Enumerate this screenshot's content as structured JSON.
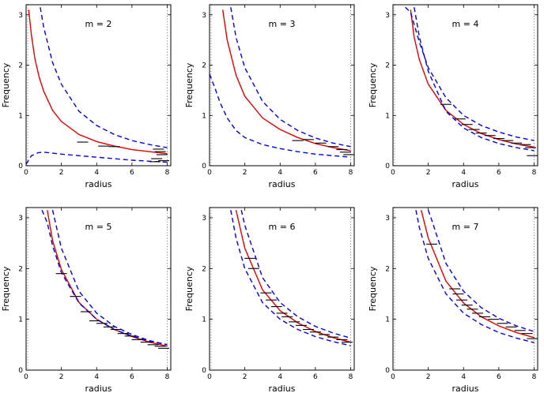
{
  "chart_data": [
    {
      "type": "line",
      "title": "m = 2",
      "xlabel": "radius",
      "ylabel": "Frequency",
      "xlim": [
        0,
        8.2
      ],
      "ylim": [
        0,
        3.2
      ],
      "xticks": [
        "0",
        "2",
        "4",
        "6",
        "8"
      ],
      "yticks": [
        "0",
        "1",
        "2",
        "3"
      ],
      "grid": false,
      "series": [
        {
          "role": "model",
          "color": "#e00000",
          "style": "solid",
          "x": [
            0.15,
            0.3,
            0.5,
            0.75,
            1,
            1.5,
            2,
            3,
            4,
            5,
            6,
            7,
            8
          ],
          "y": [
            3.1,
            2.6,
            2.12,
            1.75,
            1.48,
            1.1,
            0.88,
            0.62,
            0.48,
            0.39,
            0.32,
            0.28,
            0.24
          ]
        },
        {
          "role": "upper bound",
          "color": "#0000dd",
          "style": "dashed",
          "x": [
            0.8,
            1,
            1.5,
            2,
            3,
            4,
            5,
            6,
            7,
            8
          ],
          "y": [
            3.15,
            2.75,
            2.05,
            1.62,
            1.08,
            0.8,
            0.62,
            0.5,
            0.42,
            0.36
          ]
        },
        {
          "role": "lower bound",
          "color": "#0000dd",
          "style": "dashed",
          "x": [
            0,
            0.3,
            0.7,
            1,
            1.5,
            2,
            3,
            4,
            5,
            6,
            7,
            8
          ],
          "y": [
            0.03,
            0.2,
            0.26,
            0.27,
            0.25,
            0.23,
            0.2,
            0.17,
            0.14,
            0.11,
            0.09,
            0.07
          ]
        }
      ],
      "measurements": [
        {
          "x": 3.2,
          "y": 0.47
        },
        {
          "x": 4.4,
          "y": 0.39
        },
        {
          "x": 5.0,
          "y": 0.38
        },
        {
          "x": 7.5,
          "y": 0.33
        },
        {
          "x": 7.6,
          "y": 0.28
        },
        {
          "x": 7.7,
          "y": 0.22
        },
        {
          "x": 7.4,
          "y": 0.14
        },
        {
          "x": 7.8,
          "y": 0.1
        },
        {
          "x": 7.3,
          "y": 0.08
        }
      ]
    },
    {
      "type": "line",
      "title": "m = 3",
      "xlabel": "radius",
      "ylabel": "Frequency",
      "xlim": [
        0,
        8.2
      ],
      "ylim": [
        0,
        3.2
      ],
      "xticks": [
        "0",
        "2",
        "4",
        "6",
        "8"
      ],
      "yticks": [
        "0",
        "1",
        "2",
        "3"
      ],
      "grid": false,
      "series": [
        {
          "role": "model",
          "color": "#e00000",
          "style": "solid",
          "x": [
            0.75,
            1,
            1.5,
            2,
            3,
            4,
            5,
            6,
            7,
            8
          ],
          "y": [
            3.1,
            2.5,
            1.8,
            1.38,
            0.95,
            0.72,
            0.56,
            0.44,
            0.36,
            0.3
          ]
        },
        {
          "role": "upper bound",
          "color": "#0000dd",
          "style": "dashed",
          "x": [
            1.2,
            1.5,
            2,
            3,
            4,
            5,
            6,
            7,
            8
          ],
          "y": [
            3.15,
            2.55,
            1.95,
            1.28,
            0.92,
            0.7,
            0.55,
            0.45,
            0.38
          ]
        },
        {
          "role": "lower bound",
          "color": "#0000dd",
          "style": "dashed",
          "x": [
            0,
            0.3,
            0.6,
            1,
            1.5,
            2,
            3,
            4,
            5,
            6,
            7,
            8
          ],
          "y": [
            1.82,
            1.55,
            1.25,
            0.95,
            0.7,
            0.56,
            0.42,
            0.34,
            0.28,
            0.23,
            0.2,
            0.17
          ]
        }
      ],
      "measurements": [
        {
          "x": 5.0,
          "y": 0.5
        },
        {
          "x": 5.6,
          "y": 0.52
        },
        {
          "x": 6.3,
          "y": 0.45
        },
        {
          "x": 7.0,
          "y": 0.38
        },
        {
          "x": 7.5,
          "y": 0.32
        },
        {
          "x": 7.7,
          "y": 0.27
        },
        {
          "x": 7.9,
          "y": 0.22
        }
      ]
    },
    {
      "type": "line",
      "title": "m = 4",
      "xlabel": "radius",
      "ylabel": "Frequency",
      "xlim": [
        0,
        8.2
      ],
      "ylim": [
        0,
        3.2
      ],
      "xticks": [
        "0",
        "2",
        "4",
        "6",
        "8"
      ],
      "yticks": [
        "0",
        "1",
        "2",
        "3"
      ],
      "grid": false,
      "series": [
        {
          "role": "model",
          "color": "#e00000",
          "style": "solid",
          "x": [
            1,
            1.2,
            1.5,
            2,
            3,
            4,
            5,
            6,
            7,
            8
          ],
          "y": [
            3.1,
            2.55,
            2.1,
            1.62,
            1.1,
            0.82,
            0.64,
            0.52,
            0.43,
            0.37
          ]
        },
        {
          "role": "upper bound",
          "color": "#0000dd",
          "style": "dashed",
          "x": [
            0.7,
            1,
            1.5,
            2,
            3,
            4,
            5,
            6,
            7,
            8
          ],
          "y": [
            3.15,
            3.05,
            2.45,
            1.95,
            1.35,
            1.0,
            0.8,
            0.67,
            0.57,
            0.5
          ]
        },
        {
          "role": "lower bound",
          "color": "#0000dd",
          "style": "dashed",
          "x": [
            1.2,
            1.5,
            2,
            3,
            4,
            5,
            6,
            7,
            8
          ],
          "y": [
            3.15,
            2.55,
            1.88,
            1.08,
            0.75,
            0.56,
            0.44,
            0.36,
            0.3
          ]
        }
      ],
      "measurements": [
        {
          "x": 3.0,
          "y": 1.22
        },
        {
          "x": 3.8,
          "y": 0.93
        },
        {
          "x": 4.2,
          "y": 0.82
        },
        {
          "x": 4.6,
          "y": 0.72
        },
        {
          "x": 5.0,
          "y": 0.65
        },
        {
          "x": 5.5,
          "y": 0.6
        },
        {
          "x": 6.0,
          "y": 0.54
        },
        {
          "x": 6.5,
          "y": 0.5
        },
        {
          "x": 7.0,
          "y": 0.45
        },
        {
          "x": 7.5,
          "y": 0.42
        },
        {
          "x": 7.8,
          "y": 0.36
        },
        {
          "x": 7.9,
          "y": 0.2
        }
      ]
    },
    {
      "type": "line",
      "title": "m = 5",
      "xlabel": "radius",
      "ylabel": "Frequency",
      "xlim": [
        0,
        8.2
      ],
      "ylim": [
        0,
        3.2
      ],
      "xticks": [
        "0",
        "2",
        "4",
        "6",
        "8"
      ],
      "yticks": [
        "0",
        "1",
        "2",
        "3"
      ],
      "grid": false,
      "series": [
        {
          "role": "model",
          "color": "#e00000",
          "style": "solid",
          "x": [
            1.2,
            1.5,
            2,
            3,
            4,
            5,
            6,
            7,
            8
          ],
          "y": [
            3.15,
            2.55,
            1.98,
            1.33,
            1.0,
            0.8,
            0.66,
            0.55,
            0.47
          ]
        },
        {
          "role": "upper bound",
          "color": "#0000dd",
          "style": "dashed",
          "x": [
            0.9,
            1.2,
            1.5,
            2,
            3,
            4,
            5,
            6,
            7,
            8
          ],
          "y": [
            3.15,
            2.9,
            2.45,
            1.92,
            1.32,
            1.0,
            0.8,
            0.67,
            0.57,
            0.5
          ]
        },
        {
          "role": "lower bound",
          "color": "#0000dd",
          "style": "dashed",
          "x": [
            1.5,
            2,
            3,
            4,
            5,
            6,
            7,
            8
          ],
          "y": [
            3.15,
            2.4,
            1.55,
            1.12,
            0.86,
            0.7,
            0.58,
            0.5
          ]
        }
      ],
      "measurements": [
        {
          "x": 2.0,
          "y": 1.9
        },
        {
          "x": 2.8,
          "y": 1.45
        },
        {
          "x": 3.4,
          "y": 1.15
        },
        {
          "x": 3.9,
          "y": 0.97
        },
        {
          "x": 4.3,
          "y": 0.92
        },
        {
          "x": 4.7,
          "y": 0.85
        },
        {
          "x": 5.1,
          "y": 0.8
        },
        {
          "x": 5.5,
          "y": 0.72
        },
        {
          "x": 5.9,
          "y": 0.67
        },
        {
          "x": 6.3,
          "y": 0.6
        },
        {
          "x": 6.8,
          "y": 0.55
        },
        {
          "x": 7.2,
          "y": 0.5
        },
        {
          "x": 7.6,
          "y": 0.47
        },
        {
          "x": 7.8,
          "y": 0.43
        }
      ]
    },
    {
      "type": "line",
      "title": "m = 6",
      "xlabel": "radius",
      "ylabel": "Frequency",
      "xlim": [
        0,
        8.2
      ],
      "ylim": [
        0,
        3.2
      ],
      "xticks": [
        "0",
        "2",
        "4",
        "6",
        "8"
      ],
      "yticks": [
        "0",
        "1",
        "2",
        "3"
      ],
      "grid": false,
      "series": [
        {
          "role": "model",
          "color": "#e00000",
          "style": "solid",
          "x": [
            1.5,
            2,
            3,
            4,
            5,
            6,
            7,
            8
          ],
          "y": [
            3.15,
            2.4,
            1.58,
            1.17,
            0.93,
            0.76,
            0.64,
            0.55
          ]
        },
        {
          "role": "upper bound",
          "color": "#0000dd",
          "style": "dashed",
          "x": [
            1.2,
            1.5,
            2,
            3,
            4,
            5,
            6,
            7,
            8
          ],
          "y": [
            3.15,
            2.6,
            2.0,
            1.33,
            1.0,
            0.8,
            0.66,
            0.56,
            0.48
          ]
        },
        {
          "role": "lower bound",
          "color": "#0000dd",
          "style": "dashed",
          "x": [
            1.8,
            2,
            3,
            4,
            5,
            6,
            7,
            8
          ],
          "y": [
            3.15,
            2.85,
            1.82,
            1.33,
            1.05,
            0.86,
            0.73,
            0.63
          ]
        }
      ],
      "measurements": [
        {
          "x": 2.3,
          "y": 2.2
        },
        {
          "x": 2.5,
          "y": 2.0
        },
        {
          "x": 3.2,
          "y": 1.52
        },
        {
          "x": 3.5,
          "y": 1.38
        },
        {
          "x": 3.8,
          "y": 1.25
        },
        {
          "x": 4.1,
          "y": 1.12
        },
        {
          "x": 4.4,
          "y": 1.05
        },
        {
          "x": 4.8,
          "y": 0.95
        },
        {
          "x": 5.2,
          "y": 0.88
        },
        {
          "x": 5.6,
          "y": 0.8
        },
        {
          "x": 6.0,
          "y": 0.75
        },
        {
          "x": 6.5,
          "y": 0.7
        },
        {
          "x": 7.0,
          "y": 0.65
        },
        {
          "x": 7.5,
          "y": 0.6
        },
        {
          "x": 7.8,
          "y": 0.55
        }
      ]
    },
    {
      "type": "line",
      "title": "m = 7",
      "xlabel": "radius",
      "ylabel": "Frequency",
      "xlim": [
        0,
        8.2
      ],
      "ylim": [
        0,
        3.2
      ],
      "xticks": [
        "0",
        "2",
        "4",
        "6",
        "8"
      ],
      "yticks": [
        "0",
        "1",
        "2",
        "3"
      ],
      "grid": false,
      "series": [
        {
          "role": "model",
          "color": "#e00000",
          "style": "solid",
          "x": [
            1.6,
            2,
            3,
            4,
            5,
            6,
            7,
            8
          ],
          "y": [
            3.15,
            2.6,
            1.75,
            1.32,
            1.05,
            0.87,
            0.74,
            0.64
          ]
        },
        {
          "role": "upper bound",
          "color": "#0000dd",
          "style": "dashed",
          "x": [
            1.3,
            1.5,
            2,
            3,
            4,
            5,
            6,
            7,
            8
          ],
          "y": [
            3.15,
            2.8,
            2.2,
            1.5,
            1.12,
            0.9,
            0.74,
            0.63,
            0.54
          ]
        },
        {
          "role": "lower bound",
          "color": "#0000dd",
          "style": "dashed",
          "x": [
            2.0,
            2.2,
            3,
            4,
            5,
            6,
            7,
            8
          ],
          "y": [
            3.15,
            2.95,
            2.1,
            1.55,
            1.23,
            1.02,
            0.87,
            0.76
          ]
        }
      ],
      "measurements": [
        {
          "x": 2.2,
          "y": 2.48
        },
        {
          "x": 3.5,
          "y": 1.6
        },
        {
          "x": 3.7,
          "y": 1.5
        },
        {
          "x": 3.9,
          "y": 1.38
        },
        {
          "x": 4.2,
          "y": 1.28
        },
        {
          "x": 4.5,
          "y": 1.2
        },
        {
          "x": 4.8,
          "y": 1.12
        },
        {
          "x": 5.2,
          "y": 1.05
        },
        {
          "x": 5.7,
          "y": 1.0
        },
        {
          "x": 6.2,
          "y": 0.92
        },
        {
          "x": 6.7,
          "y": 0.85
        },
        {
          "x": 7.2,
          "y": 0.78
        },
        {
          "x": 7.6,
          "y": 0.72
        },
        {
          "x": 7.9,
          "y": 0.62
        }
      ]
    }
  ]
}
